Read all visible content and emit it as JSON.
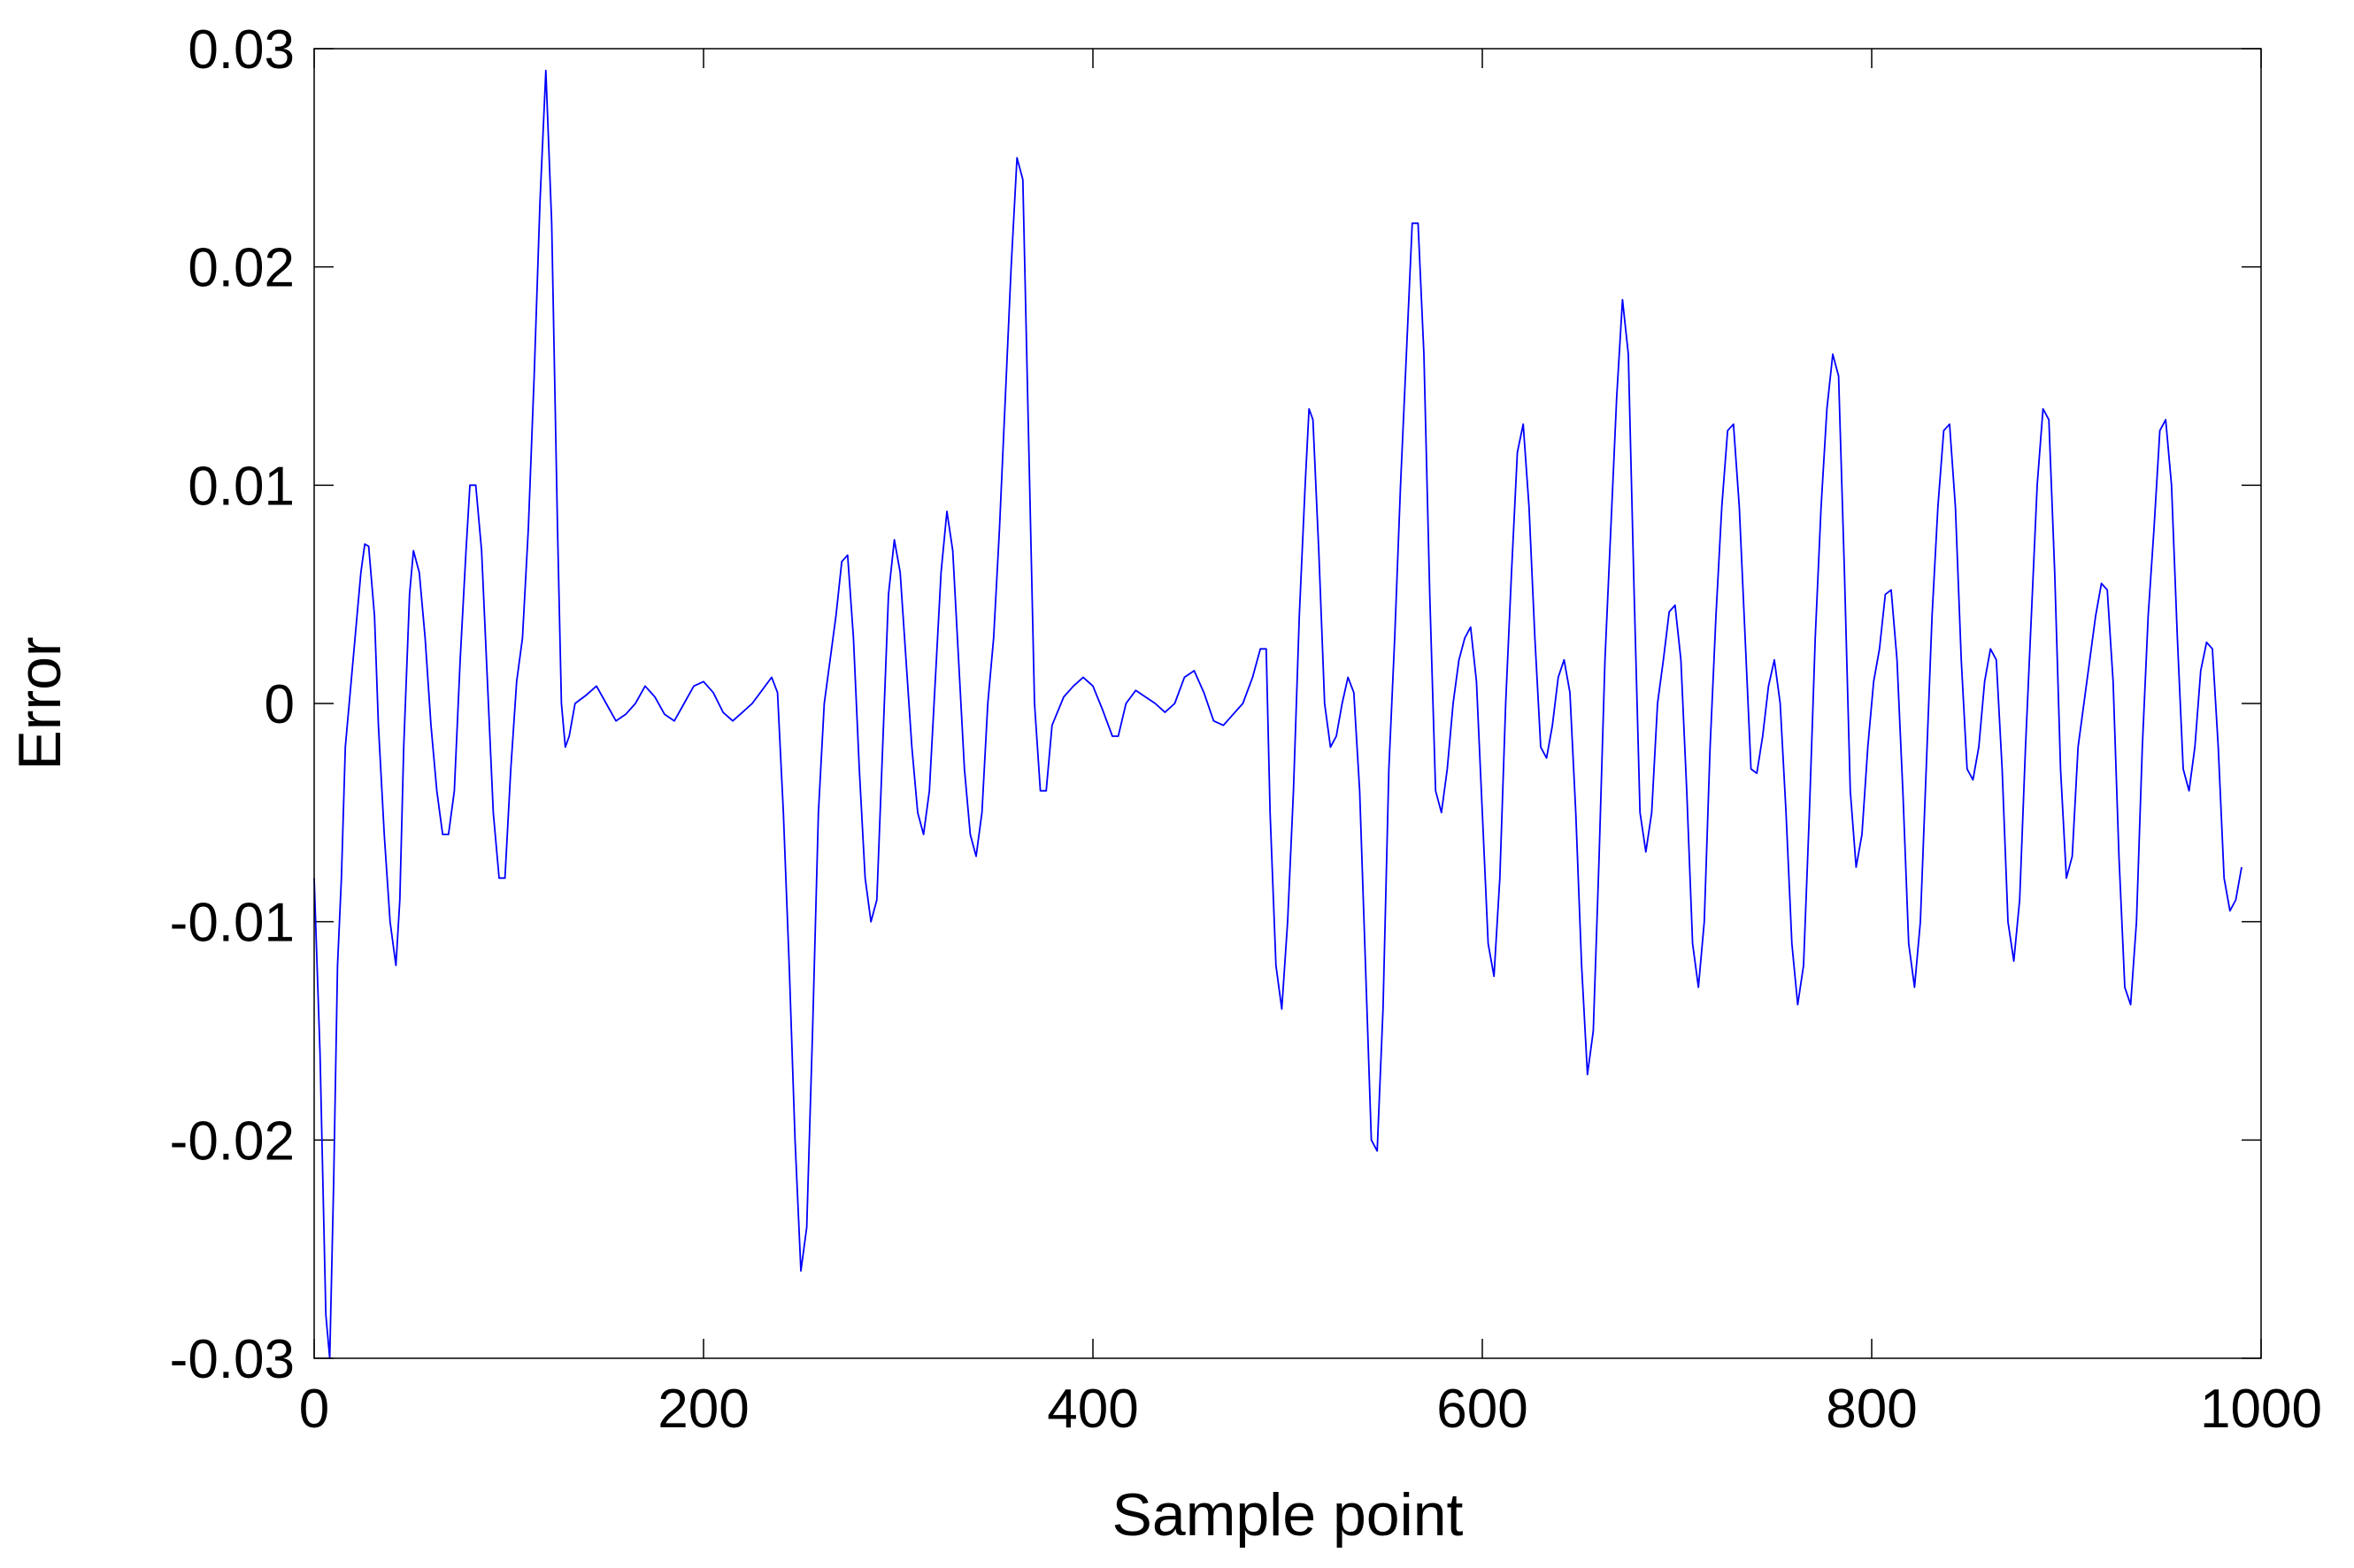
{
  "chart_data": {
    "type": "line",
    "title": "",
    "xlabel": "Sample point",
    "ylabel": "Error",
    "xlim": [
      0,
      1000
    ],
    "ylim": [
      -0.03,
      0.03
    ],
    "xticks": [
      0,
      200,
      400,
      600,
      800,
      1000
    ],
    "xtick_labels": [
      "0",
      "200",
      "400",
      "600",
      "800",
      "1000"
    ],
    "yticks": [
      -0.03,
      -0.02,
      -0.01,
      0,
      0.01,
      0.02,
      0.03
    ],
    "ytick_labels": [
      "-0.03",
      "-0.02",
      "-0.01",
      "0",
      "0.01",
      "0.02",
      "0.03"
    ],
    "grid": false,
    "series": [
      {
        "color": "#0000ff",
        "points": [
          [
            0,
            -0.008
          ],
          [
            3,
            -0.016
          ],
          [
            6,
            -0.028
          ],
          [
            8,
            -0.03
          ],
          [
            10,
            -0.022
          ],
          [
            12,
            -0.012
          ],
          [
            14,
            -0.008
          ],
          [
            16,
            -0.002
          ],
          [
            18,
            0.0
          ],
          [
            20,
            0.002
          ],
          [
            22,
            0.004
          ],
          [
            24,
            0.006
          ],
          [
            26,
            0.0073
          ],
          [
            28,
            0.0072
          ],
          [
            31,
            0.004
          ],
          [
            33,
            -0.001
          ],
          [
            36,
            -0.006
          ],
          [
            39,
            -0.01
          ],
          [
            42,
            -0.012
          ],
          [
            44,
            -0.009
          ],
          [
            46,
            -0.002
          ],
          [
            49,
            0.005
          ],
          [
            51,
            0.007
          ],
          [
            54,
            0.006
          ],
          [
            57,
            0.003
          ],
          [
            60,
            -0.001
          ],
          [
            63,
            -0.004
          ],
          [
            66,
            -0.006
          ],
          [
            69,
            -0.006
          ],
          [
            72,
            -0.004
          ],
          [
            75,
            0.002
          ],
          [
            78,
            0.007
          ],
          [
            80,
            0.01
          ],
          [
            83,
            0.01
          ],
          [
            86,
            0.007
          ],
          [
            89,
            0.001
          ],
          [
            92,
            -0.005
          ],
          [
            95,
            -0.008
          ],
          [
            98,
            -0.008
          ],
          [
            101,
            -0.003
          ],
          [
            104,
            0.001
          ],
          [
            107,
            0.003
          ],
          [
            110,
            0.008
          ],
          [
            113,
            0.015
          ],
          [
            116,
            0.023
          ],
          [
            119,
            0.029
          ],
          [
            122,
            0.022
          ],
          [
            125,
            0.008
          ],
          [
            127,
            0.0
          ],
          [
            129,
            -0.002
          ],
          [
            131,
            -0.0015
          ],
          [
            134,
            0.0
          ],
          [
            140,
            0.0004
          ],
          [
            145,
            0.0008
          ],
          [
            150,
            0.0
          ],
          [
            155,
            -0.0008
          ],
          [
            160,
            -0.0005
          ],
          [
            165,
            0.0
          ],
          [
            170,
            0.0008
          ],
          [
            175,
            0.0003
          ],
          [
            180,
            -0.0005
          ],
          [
            185,
            -0.0008
          ],
          [
            190,
            0.0
          ],
          [
            195,
            0.0008
          ],
          [
            200,
            0.001
          ],
          [
            205,
            0.0005
          ],
          [
            210,
            -0.0004
          ],
          [
            215,
            -0.0008
          ],
          [
            220,
            -0.0004
          ],
          [
            225,
            0.0
          ],
          [
            230,
            0.0006
          ],
          [
            235,
            0.0012
          ],
          [
            238,
            0.0005
          ],
          [
            241,
            -0.005
          ],
          [
            244,
            -0.012
          ],
          [
            247,
            -0.02
          ],
          [
            250,
            -0.026
          ],
          [
            253,
            -0.024
          ],
          [
            256,
            -0.015
          ],
          [
            259,
            -0.005
          ],
          [
            262,
            0.0
          ],
          [
            265,
            0.002
          ],
          [
            268,
            0.004
          ],
          [
            271,
            0.0065
          ],
          [
            274,
            0.0068
          ],
          [
            277,
            0.003
          ],
          [
            280,
            -0.003
          ],
          [
            283,
            -0.008
          ],
          [
            286,
            -0.01
          ],
          [
            289,
            -0.009
          ],
          [
            292,
            -0.002
          ],
          [
            295,
            0.005
          ],
          [
            298,
            0.0075
          ],
          [
            301,
            0.006
          ],
          [
            304,
            0.002
          ],
          [
            307,
            -0.002
          ],
          [
            310,
            -0.005
          ],
          [
            313,
            -0.006
          ],
          [
            316,
            -0.004
          ],
          [
            319,
            0.001
          ],
          [
            322,
            0.006
          ],
          [
            325,
            0.0088
          ],
          [
            328,
            0.007
          ],
          [
            331,
            0.002
          ],
          [
            334,
            -0.003
          ],
          [
            337,
            -0.006
          ],
          [
            340,
            -0.007
          ],
          [
            343,
            -0.005
          ],
          [
            346,
            0.0
          ],
          [
            349,
            0.003
          ],
          [
            352,
            0.008
          ],
          [
            355,
            0.014
          ],
          [
            358,
            0.02
          ],
          [
            361,
            0.025
          ],
          [
            364,
            0.024
          ],
          [
            367,
            0.012
          ],
          [
            370,
            0.0
          ],
          [
            373,
            -0.004
          ],
          [
            376,
            -0.004
          ],
          [
            379,
            -0.001
          ],
          [
            385,
            0.0003
          ],
          [
            390,
            0.0008
          ],
          [
            395,
            0.0012
          ],
          [
            400,
            0.0008
          ],
          [
            405,
            -0.0003
          ],
          [
            410,
            -0.0015
          ],
          [
            413,
            -0.0015
          ],
          [
            417,
            0.0
          ],
          [
            422,
            0.0006
          ],
          [
            427,
            0.0003
          ],
          [
            432,
            0.0
          ],
          [
            437,
            -0.0004
          ],
          [
            442,
            0.0
          ],
          [
            447,
            0.0012
          ],
          [
            452,
            0.0015
          ],
          [
            457,
            0.0005
          ],
          [
            462,
            -0.0008
          ],
          [
            467,
            -0.001
          ],
          [
            472,
            -0.0005
          ],
          [
            477,
            0.0
          ],
          [
            482,
            0.0012
          ],
          [
            486,
            0.0025
          ],
          [
            489,
            0.0025
          ],
          [
            491,
            -0.005
          ],
          [
            494,
            -0.012
          ],
          [
            497,
            -0.014
          ],
          [
            500,
            -0.01
          ],
          [
            503,
            -0.004
          ],
          [
            506,
            0.004
          ],
          [
            509,
            0.01
          ],
          [
            511,
            0.0135
          ],
          [
            513,
            0.013
          ],
          [
            516,
            0.007
          ],
          [
            519,
            0.0
          ],
          [
            522,
            -0.002
          ],
          [
            525,
            -0.0015
          ],
          [
            528,
            0.0
          ],
          [
            531,
            0.0012
          ],
          [
            534,
            0.0005
          ],
          [
            537,
            -0.004
          ],
          [
            540,
            -0.012
          ],
          [
            543,
            -0.02
          ],
          [
            546,
            -0.0205
          ],
          [
            549,
            -0.014
          ],
          [
            552,
            -0.003
          ],
          [
            555,
            0.003
          ],
          [
            558,
            0.01
          ],
          [
            561,
            0.016
          ],
          [
            564,
            0.022
          ],
          [
            567,
            0.022
          ],
          [
            570,
            0.016
          ],
          [
            573,
            0.005
          ],
          [
            576,
            -0.004
          ],
          [
            579,
            -0.005
          ],
          [
            582,
            -0.003
          ],
          [
            585,
            0.0
          ],
          [
            588,
            0.002
          ],
          [
            591,
            0.003
          ],
          [
            594,
            0.0035
          ],
          [
            597,
            0.001
          ],
          [
            600,
            -0.005
          ],
          [
            603,
            -0.011
          ],
          [
            606,
            -0.0125
          ],
          [
            609,
            -0.008
          ],
          [
            612,
            0.0
          ],
          [
            615,
            0.006
          ],
          [
            618,
            0.0115
          ],
          [
            621,
            0.0128
          ],
          [
            624,
            0.009
          ],
          [
            627,
            0.003
          ],
          [
            630,
            -0.002
          ],
          [
            633,
            -0.0025
          ],
          [
            636,
            -0.001
          ],
          [
            639,
            0.0012
          ],
          [
            642,
            0.002
          ],
          [
            645,
            0.0005
          ],
          [
            648,
            -0.005
          ],
          [
            651,
            -0.012
          ],
          [
            654,
            -0.017
          ],
          [
            657,
            -0.015
          ],
          [
            660,
            -0.007
          ],
          [
            663,
            0.002
          ],
          [
            666,
            0.008
          ],
          [
            669,
            0.014
          ],
          [
            672,
            0.0185
          ],
          [
            675,
            0.016
          ],
          [
            678,
            0.005
          ],
          [
            681,
            -0.005
          ],
          [
            684,
            -0.0068
          ],
          [
            687,
            -0.005
          ],
          [
            690,
            0.0
          ],
          [
            693,
            0.002
          ],
          [
            696,
            0.0042
          ],
          [
            699,
            0.0045
          ],
          [
            702,
            0.002
          ],
          [
            705,
            -0.004
          ],
          [
            708,
            -0.011
          ],
          [
            711,
            -0.013
          ],
          [
            714,
            -0.01
          ],
          [
            717,
            -0.002
          ],
          [
            720,
            0.004
          ],
          [
            723,
            0.009
          ],
          [
            726,
            0.0125
          ],
          [
            729,
            0.0128
          ],
          [
            732,
            0.009
          ],
          [
            735,
            0.003
          ],
          [
            738,
            -0.003
          ],
          [
            741,
            -0.0032
          ],
          [
            744,
            -0.0015
          ],
          [
            747,
            0.0008
          ],
          [
            750,
            0.002
          ],
          [
            753,
            0.0
          ],
          [
            756,
            -0.005
          ],
          [
            759,
            -0.011
          ],
          [
            762,
            -0.0138
          ],
          [
            765,
            -0.012
          ],
          [
            768,
            -0.005
          ],
          [
            771,
            0.003
          ],
          [
            774,
            0.009
          ],
          [
            777,
            0.0135
          ],
          [
            780,
            0.016
          ],
          [
            783,
            0.015
          ],
          [
            786,
            0.006
          ],
          [
            789,
            -0.004
          ],
          [
            792,
            -0.0075
          ],
          [
            795,
            -0.006
          ],
          [
            798,
            -0.002
          ],
          [
            801,
            0.001
          ],
          [
            804,
            0.0025
          ],
          [
            807,
            0.005
          ],
          [
            810,
            0.0052
          ],
          [
            813,
            0.002
          ],
          [
            816,
            -0.004
          ],
          [
            819,
            -0.011
          ],
          [
            822,
            -0.013
          ],
          [
            825,
            -0.01
          ],
          [
            828,
            -0.003
          ],
          [
            831,
            0.004
          ],
          [
            834,
            0.009
          ],
          [
            837,
            0.0125
          ],
          [
            840,
            0.0128
          ],
          [
            843,
            0.009
          ],
          [
            846,
            0.002
          ],
          [
            849,
            -0.003
          ],
          [
            852,
            -0.0035
          ],
          [
            855,
            -0.002
          ],
          [
            858,
            0.001
          ],
          [
            861,
            0.0025
          ],
          [
            864,
            0.002
          ],
          [
            867,
            -0.003
          ],
          [
            870,
            -0.01
          ],
          [
            873,
            -0.0118
          ],
          [
            876,
            -0.009
          ],
          [
            879,
            -0.002
          ],
          [
            882,
            0.004
          ],
          [
            885,
            0.01
          ],
          [
            888,
            0.0135
          ],
          [
            891,
            0.013
          ],
          [
            894,
            0.006
          ],
          [
            897,
            -0.003
          ],
          [
            900,
            -0.008
          ],
          [
            903,
            -0.007
          ],
          [
            906,
            -0.002
          ],
          [
            909,
            0.0
          ],
          [
            912,
            0.002
          ],
          [
            915,
            0.004
          ],
          [
            918,
            0.0055
          ],
          [
            921,
            0.0052
          ],
          [
            924,
            0.001
          ],
          [
            927,
            -0.007
          ],
          [
            930,
            -0.013
          ],
          [
            933,
            -0.0138
          ],
          [
            936,
            -0.01
          ],
          [
            939,
            -0.002
          ],
          [
            942,
            0.004
          ],
          [
            945,
            0.008
          ],
          [
            948,
            0.0125
          ],
          [
            951,
            0.013
          ],
          [
            954,
            0.01
          ],
          [
            957,
            0.003
          ],
          [
            960,
            -0.003
          ],
          [
            963,
            -0.004
          ],
          [
            966,
            -0.002
          ],
          [
            969,
            0.0015
          ],
          [
            972,
            0.0028
          ],
          [
            975,
            0.0025
          ],
          [
            978,
            -0.002
          ],
          [
            981,
            -0.008
          ],
          [
            984,
            -0.0095
          ],
          [
            987,
            -0.009
          ],
          [
            990,
            -0.0075
          ]
        ]
      }
    ]
  }
}
